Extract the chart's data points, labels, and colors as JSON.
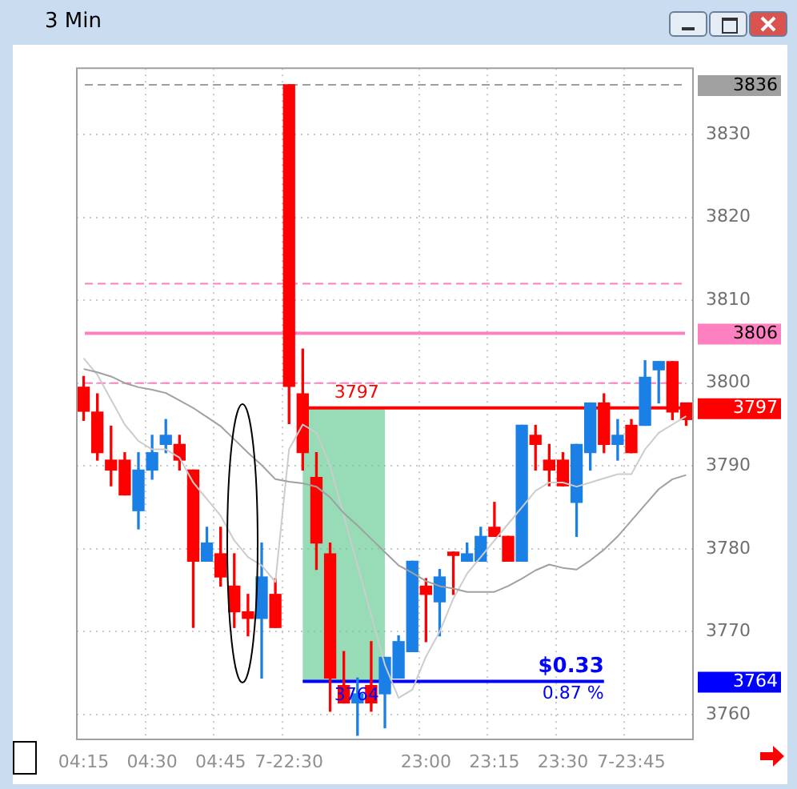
{
  "chart_data": {
    "type": "candlestick",
    "title": "3 Min",
    "categories": [
      "04:15",
      null,
      null,
      null,
      null,
      "04:30",
      null,
      null,
      null,
      null,
      "04:45",
      null,
      null,
      null,
      null,
      "7-22:30",
      null,
      null,
      null,
      null,
      null,
      null,
      null,
      null,
      null,
      "23:00",
      null,
      null,
      null,
      null,
      "23:15",
      null,
      null,
      null,
      null,
      "23:30",
      null,
      null,
      null,
      null,
      "7-23:45",
      null,
      null,
      null,
      null
    ],
    "ohlc": [
      [
        3799.5,
        3800.8,
        3795.5,
        3796.6
      ],
      [
        3796.5,
        3798.7,
        3790.7,
        3791.6
      ],
      [
        3790.7,
        3794.8,
        3787.6,
        3789.5
      ],
      [
        3790.7,
        3791.6,
        3786.5,
        3786.5
      ],
      [
        3784.6,
        3791.6,
        3782.4,
        3789.5
      ],
      [
        3789.5,
        3793.7,
        3788.4,
        3791.6
      ],
      [
        3792.6,
        3795.6,
        3791.6,
        3793.7
      ],
      [
        3792.6,
        3793.7,
        3789.5,
        3790.7
      ],
      [
        3789.5,
        3789.5,
        3770.5,
        3778.5
      ],
      [
        3778.5,
        3782.6,
        3778.5,
        3780.7
      ],
      [
        3779.4,
        3782.6,
        3775.5,
        3776.6
      ],
      [
        3775.5,
        3779.4,
        3770.5,
        3772.4
      ],
      [
        3772.4,
        3774.5,
        3769.5,
        3771.6
      ],
      [
        3771.6,
        3780.7,
        3764.4,
        3776.6
      ],
      [
        3774.5,
        3776.4,
        3770.5,
        3770.5
      ],
      [
        3836,
        3836,
        3795.1,
        3799.6
      ],
      [
        3798.7,
        3804.1,
        3789.5,
        3791.6
      ],
      [
        3788.6,
        3791.6,
        3777.5,
        3780.7
      ],
      [
        3779.4,
        3780.7,
        3760.4,
        3764.4
      ],
      [
        3763.5,
        3767.6,
        3761.4,
        3761.4
      ],
      [
        3761.4,
        3764.4,
        3757.5,
        3762.5
      ],
      [
        3763.5,
        3768.8,
        3760.4,
        3761.4
      ],
      [
        3762.5,
        3766.9,
        3758.4,
        3766.9
      ],
      [
        3764.4,
        3769.5,
        3764.4,
        3768.8
      ],
      [
        3767.6,
        3778.5,
        3767.6,
        3778.5
      ],
      [
        3775.5,
        3776.4,
        3768.8,
        3774.5
      ],
      [
        3773.6,
        3777.5,
        3769.5,
        3776.6
      ],
      [
        3779.6,
        3779.6,
        3774.5,
        3779.2
      ],
      [
        3778.5,
        3780.7,
        3778.5,
        3779.4
      ],
      [
        3778.5,
        3782.6,
        3778.5,
        3781.5
      ],
      [
        3782.6,
        3785.6,
        3781.5,
        3781.5
      ],
      [
        3781.5,
        3781.5,
        3778.5,
        3778.5
      ],
      [
        3778.5,
        3794.9,
        3778.5,
        3794.9
      ],
      [
        3793.7,
        3794.9,
        3789.5,
        3792.6
      ],
      [
        3790.7,
        3792.6,
        3787.6,
        3789.5
      ],
      [
        3790.7,
        3791.6,
        3787.6,
        3787.6
      ],
      [
        3785.6,
        3792.6,
        3781.5,
        3792.6
      ],
      [
        3791.6,
        3797.6,
        3789.5,
        3797.6
      ],
      [
        3797.6,
        3798.7,
        3791.6,
        3792.6
      ],
      [
        3792.6,
        3795.6,
        3790.7,
        3793.7
      ],
      [
        3794.9,
        3795.6,
        3791.6,
        3791.6
      ],
      [
        3794.9,
        3802.7,
        3794.9,
        3800.7
      ],
      [
        3801.6,
        3802.6,
        3797.6,
        3802.6
      ],
      [
        3802.6,
        3802.6,
        3795.6,
        3796.5
      ],
      [
        3797.6,
        3797.6,
        3794.9,
        3795.6
      ]
    ],
    "colors": [
      "#ff0000",
      "#ff0000",
      "#ff0000",
      "#ff0000",
      "#1a80e6",
      "#1a80e6",
      "#1a80e6",
      "#ff0000",
      "#ff0000",
      "#1a80e6",
      "#ff0000",
      "#ff0000",
      "#ff0000",
      "#1a80e6",
      "#ff0000",
      "#ff0000",
      "#ff0000",
      "#ff0000",
      "#ff0000",
      "#ff0000",
      "#1a80e6",
      "#ff0000",
      "#1a80e6",
      "#1a80e6",
      "#1a80e6",
      "#ff0000",
      "#1a80e6",
      "#ff0000",
      "#1a80e6",
      "#1a80e6",
      "#ff0000",
      "#ff0000",
      "#1a80e6",
      "#ff0000",
      "#ff0000",
      "#ff0000",
      "#1a80e6",
      "#1a80e6",
      "#ff0000",
      "#1a80e6",
      "#ff0000",
      "#1a80e6",
      "#1a80e6",
      "#ff0000",
      "#ff0000"
    ],
    "series": [
      {
        "type": "line",
        "color": "#a0a0a0",
        "values": [
          3801.7,
          3801.3,
          3800.8,
          3800.0,
          3799.5,
          3799.2,
          3798.8,
          3797.9,
          3797.0,
          3795.9,
          3794.8,
          3793.2,
          3791.6,
          3790.1,
          3788.4,
          3788.1,
          3787.9,
          3787.5,
          3786.2,
          3784.3,
          3782.8,
          3781.2,
          3779.6,
          3778.0,
          3777.1,
          3776.1,
          3775.5,
          3775.2,
          3774.8,
          3774.8,
          3774.8,
          3775.5,
          3776.4,
          3777.4,
          3778.1,
          3777.7,
          3777.5,
          3778.6,
          3779.9,
          3781.5,
          3783.4,
          3785.3,
          3787.2,
          3788.4,
          3788.9
        ]
      },
      {
        "type": "line",
        "color": "#cccccc",
        "values": [
          3803,
          3801,
          3798,
          3795,
          3793,
          3792,
          3792,
          3791,
          3788,
          3786,
          3784,
          3781,
          3779,
          3778,
          3776,
          3792,
          3795,
          3794,
          3790,
          3784,
          3778,
          3772,
          3766,
          3762,
          3763,
          3767,
          3770,
          3774,
          3777,
          3779,
          3781,
          3783,
          3785,
          3787,
          3788,
          3788,
          3787.5,
          3788,
          3788.5,
          3789,
          3789,
          3792,
          3794,
          3795,
          3796
        ]
      }
    ],
    "ylim": [
      3757,
      3838
    ],
    "yticks": [
      3760,
      3770,
      3780,
      3790,
      3800,
      3810,
      3820,
      3830
    ],
    "grid": true,
    "ref_lines": [
      {
        "axis": "y",
        "value": 3836,
        "label": "3836",
        "color": "#a0a0a0",
        "line_style": "dashed"
      },
      {
        "axis": "y",
        "value": 3812,
        "color": "#ff80c0",
        "line_style": "dashed"
      },
      {
        "axis": "y",
        "value": 3806,
        "label": "3806",
        "color": "#ff80c0",
        "line_style": "solid"
      },
      {
        "axis": "y",
        "value": 3800,
        "color": "#ff80c0",
        "line_style": "dashed"
      },
      {
        "axis": "y",
        "value": 3797,
        "label": "3797",
        "color": "#ff0000",
        "line_style": "solid"
      },
      {
        "axis": "y",
        "value": 3764,
        "label": "3764",
        "color": "#0000ff",
        "line_style": "solid"
      }
    ],
    "bands": [
      {
        "axis": "y",
        "from": 3764,
        "to": 3797,
        "color": "#60c890"
      }
    ],
    "annotations": [
      "$0.33",
      "0.87 %"
    ]
  }
}
